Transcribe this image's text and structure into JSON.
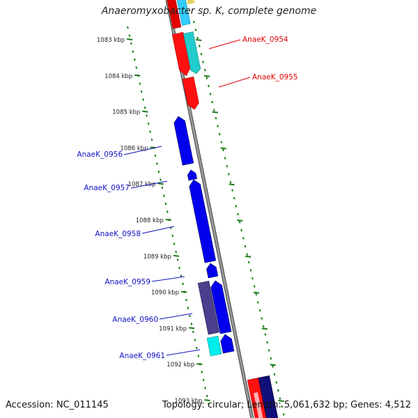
{
  "title": "Anaeromyxobacter sp. K, complete genome",
  "accession": "Accession: NC_011145",
  "summary": "Topology: circular; Length: 5,061,632 bp; Genes: 4,512",
  "colors": {
    "backbone": "#888888",
    "ticks": "#1a7a1a",
    "label_red": "#e00000",
    "label_blue": "#1010c0"
  },
  "kbp_marks": [
    {
      "text": "1083 kbp",
      "kb": 1083
    },
    {
      "text": "1084 kbp",
      "kb": 1084
    },
    {
      "text": "1085 kbp",
      "kb": 1085
    },
    {
      "text": "1086 kbp",
      "kb": 1086
    },
    {
      "text": "1087 kbp",
      "kb": 1087
    },
    {
      "text": "1088 kbp",
      "kb": 1088
    },
    {
      "text": "1089 kbp",
      "kb": 1089
    },
    {
      "text": "1090 kbp",
      "kb": 1090
    },
    {
      "text": "1091 kbp",
      "kb": 1091
    },
    {
      "text": "1092 kbp",
      "kb": 1092
    },
    {
      "text": "1093 kbp",
      "kb": 1093
    }
  ],
  "gene_labels": [
    {
      "text": "AnaeK_0954",
      "color": "#e00000",
      "side": "right"
    },
    {
      "text": "AnaeK_0955",
      "color": "#e00000",
      "side": "right"
    },
    {
      "text": "AnaeK_0956",
      "color": "#1010c0",
      "side": "left"
    },
    {
      "text": "AnaeK_0957",
      "color": "#1010c0",
      "side": "left"
    },
    {
      "text": "AnaeK_0958",
      "color": "#1010c0",
      "side": "left"
    },
    {
      "text": "AnaeK_0959",
      "color": "#1010c0",
      "side": "left"
    },
    {
      "text": "AnaeK_0960",
      "color": "#1010c0",
      "side": "left"
    },
    {
      "text": "AnaeK_0961",
      "color": "#1010c0",
      "side": "left"
    }
  ]
}
